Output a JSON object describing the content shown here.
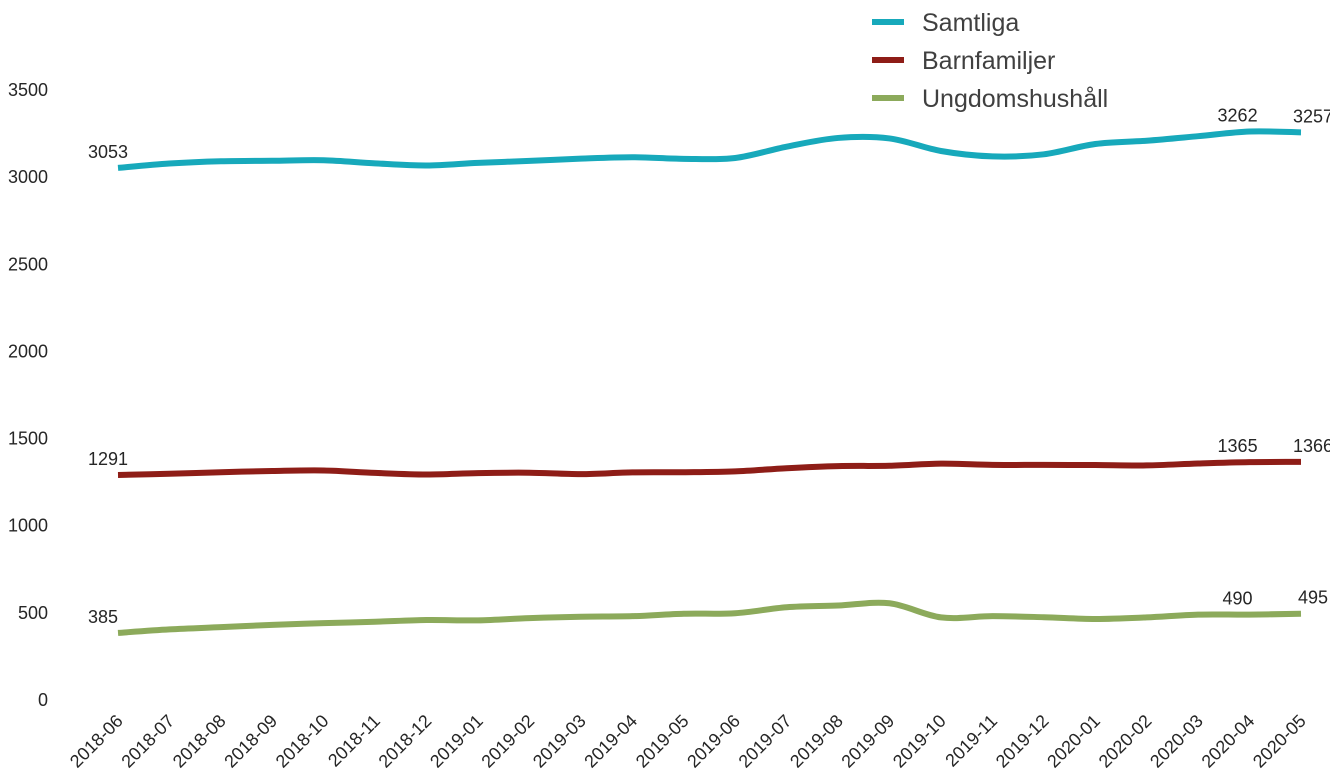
{
  "chart_data": {
    "type": "line",
    "title": "",
    "xlabel": "",
    "ylabel": "",
    "ylim": [
      0,
      3500
    ],
    "yticks": [
      0,
      500,
      1000,
      1500,
      2000,
      2500,
      3000,
      3500
    ],
    "grid": false,
    "legend_position": "top-right",
    "x": [
      "2018-06",
      "2018-07",
      "2018-08",
      "2018-09",
      "2018-10",
      "2018-11",
      "2018-12",
      "2019-01",
      "2019-02",
      "2019-03",
      "2019-04",
      "2019-05",
      "2019-06",
      "2019-07",
      "2019-08",
      "2019-09",
      "2019-10",
      "2019-11",
      "2019-12",
      "2020-01",
      "2020-02",
      "2020-03",
      "2020-04",
      "2020-05"
    ],
    "series": [
      {
        "name": "Samtliga",
        "color": "#17a9bb",
        "values": [
          3053,
          3078,
          3091,
          3094,
          3097,
          3079,
          3067,
          3082,
          3093,
          3106,
          3114,
          3105,
          3110,
          3175,
          3225,
          3222,
          3150,
          3119,
          3131,
          3190,
          3209,
          3235,
          3262,
          3257
        ],
        "labels": {
          "0": "3053",
          "22": "3262",
          "23": "3257"
        }
      },
      {
        "name": "Barnfamiljer",
        "color": "#8e1d17",
        "values": [
          1291,
          1298,
          1307,
          1314,
          1317,
          1303,
          1294,
          1302,
          1304,
          1296,
          1306,
          1307,
          1312,
          1330,
          1342,
          1344,
          1356,
          1349,
          1349,
          1348,
          1346,
          1357,
          1365,
          1366
        ],
        "labels": {
          "0": "1291",
          "22": "1365",
          "23": "1366"
        }
      },
      {
        "name": "Ungdomshushåll",
        "color": "#8caa5b",
        "values": [
          385,
          405,
          418,
          431,
          441,
          449,
          459,
          457,
          470,
          478,
          481,
          495,
          498,
          532,
          542,
          555,
          474,
          481,
          475,
          465,
          474,
          490,
          490,
          495
        ],
        "labels": {
          "0": "385",
          "22": "490",
          "23": "495"
        }
      }
    ]
  }
}
